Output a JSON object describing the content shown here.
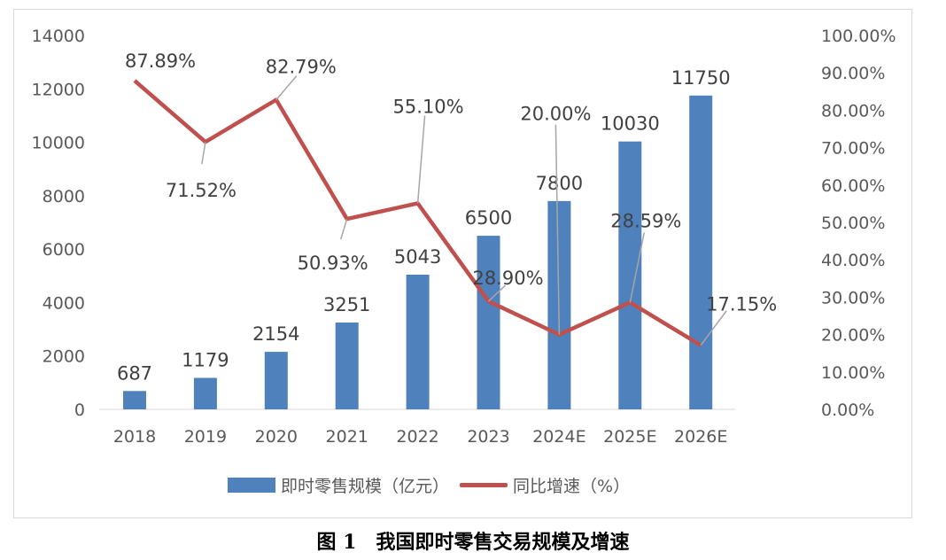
{
  "chart_data": {
    "type": "bar+line",
    "categories": [
      "2018",
      "2019",
      "2020",
      "2021",
      "2022",
      "2023",
      "2024E",
      "2025E",
      "2026E"
    ],
    "series": [
      {
        "name": "即时零售规模（亿元）",
        "type": "bar",
        "axis": "left",
        "color": "#4f81bd",
        "values": [
          687,
          1179,
          2154,
          3251,
          5043,
          6500,
          7800,
          10030,
          11750
        ],
        "labels": [
          "687",
          "1179",
          "2154",
          "3251",
          "5043",
          "6500",
          "7800",
          "10030",
          "11750"
        ]
      },
      {
        "name": "同比增速（%）",
        "type": "line",
        "axis": "right",
        "color": "#c0504d",
        "values": [
          87.89,
          71.52,
          82.79,
          50.93,
          55.1,
          28.9,
          20.0,
          28.59,
          17.15
        ],
        "labels": [
          "87.89%",
          "71.52%",
          "82.79%",
          "50.93%",
          "55.10%",
          "28.90%",
          "20.00%",
          "28.59%",
          "17.15%"
        ]
      }
    ],
    "y_left": {
      "lim": [
        0,
        14000
      ],
      "ticks": [
        "0",
        "2000",
        "4000",
        "6000",
        "8000",
        "10000",
        "12000",
        "14000"
      ]
    },
    "y_right": {
      "lim": [
        0,
        100
      ],
      "ticks": [
        "0.00%",
        "10.00%",
        "20.00%",
        "30.00%",
        "40.00%",
        "50.00%",
        "60.00%",
        "70.00%",
        "80.00%",
        "90.00%",
        "100.00%"
      ]
    },
    "grid": false,
    "legend": "bottom"
  },
  "caption": "图 1　我国即时零售交易规模及增速"
}
